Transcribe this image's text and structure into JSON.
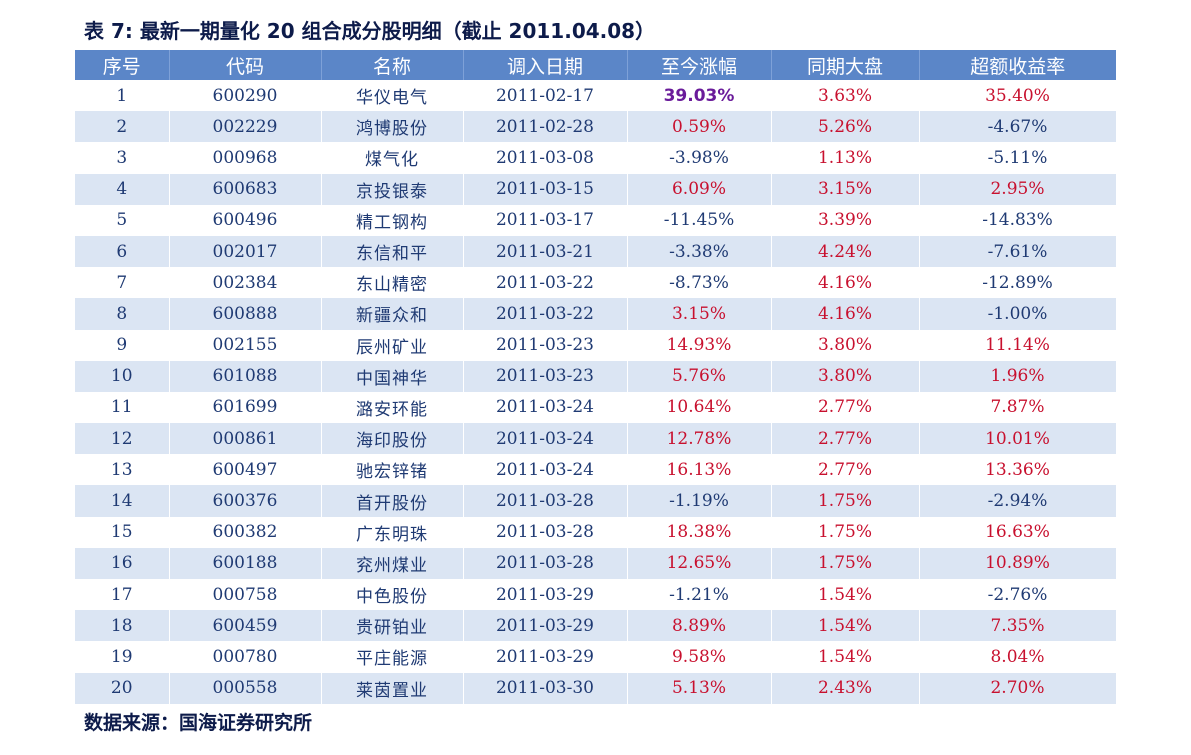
{
  "title": "表 7: 最新一期量化 20 组合成分股明细（截止 2011.04.08）",
  "table": {
    "headers": [
      "序号",
      "代码",
      "名称",
      "调入日期",
      "至今涨幅",
      "同期大盘",
      "超额收益率"
    ],
    "rows": [
      {
        "seq": "1",
        "code": "600290",
        "name": "华仪电气",
        "date": "2011-02-17",
        "gain": "39.03%",
        "market": "3.63%",
        "excess": "35.40%"
      },
      {
        "seq": "2",
        "code": "002229",
        "name": "鸿博股份",
        "date": "2011-02-28",
        "gain": "0.59%",
        "market": "5.26%",
        "excess": "-4.67%"
      },
      {
        "seq": "3",
        "code": "000968",
        "name": "煤气化",
        "date": "2011-03-08",
        "gain": "-3.98%",
        "market": "1.13%",
        "excess": "-5.11%"
      },
      {
        "seq": "4",
        "code": "600683",
        "name": "京投银泰",
        "date": "2011-03-15",
        "gain": "6.09%",
        "market": "3.15%",
        "excess": "2.95%"
      },
      {
        "seq": "5",
        "code": "600496",
        "name": "精工钢构",
        "date": "2011-03-17",
        "gain": "-11.45%",
        "market": "3.39%",
        "excess": "-14.83%"
      },
      {
        "seq": "6",
        "code": "002017",
        "name": "东信和平",
        "date": "2011-03-21",
        "gain": "-3.38%",
        "market": "4.24%",
        "excess": "-7.61%"
      },
      {
        "seq": "7",
        "code": "002384",
        "name": "东山精密",
        "date": "2011-03-22",
        "gain": "-8.73%",
        "market": "4.16%",
        "excess": "-12.89%"
      },
      {
        "seq": "8",
        "code": "600888",
        "name": "新疆众和",
        "date": "2011-03-22",
        "gain": "3.15%",
        "market": "4.16%",
        "excess": "-1.00%"
      },
      {
        "seq": "9",
        "code": "002155",
        "name": "辰州矿业",
        "date": "2011-03-23",
        "gain": "14.93%",
        "market": "3.80%",
        "excess": "11.14%"
      },
      {
        "seq": "10",
        "code": "601088",
        "name": "中国神华",
        "date": "2011-03-23",
        "gain": "5.76%",
        "market": "3.80%",
        "excess": "1.96%"
      },
      {
        "seq": "11",
        "code": "601699",
        "name": "潞安环能",
        "date": "2011-03-24",
        "gain": "10.64%",
        "market": "2.77%",
        "excess": "7.87%"
      },
      {
        "seq": "12",
        "code": "000861",
        "name": "海印股份",
        "date": "2011-03-24",
        "gain": "12.78%",
        "market": "2.77%",
        "excess": "10.01%"
      },
      {
        "seq": "13",
        "code": "600497",
        "name": "驰宏锌锗",
        "date": "2011-03-24",
        "gain": "16.13%",
        "market": "2.77%",
        "excess": "13.36%"
      },
      {
        "seq": "14",
        "code": "600376",
        "name": "首开股份",
        "date": "2011-03-28",
        "gain": "-1.19%",
        "market": "1.75%",
        "excess": "-2.94%"
      },
      {
        "seq": "15",
        "code": "600382",
        "name": "广东明珠",
        "date": "2011-03-28",
        "gain": "18.38%",
        "market": "1.75%",
        "excess": "16.63%"
      },
      {
        "seq": "16",
        "code": "600188",
        "name": "兖州煤业",
        "date": "2011-03-28",
        "gain": "12.65%",
        "market": "1.75%",
        "excess": "10.89%"
      },
      {
        "seq": "17",
        "code": "000758",
        "name": "中色股份",
        "date": "2011-03-29",
        "gain": "-1.21%",
        "market": "1.54%",
        "excess": "-2.76%"
      },
      {
        "seq": "18",
        "code": "600459",
        "name": "贵研铂业",
        "date": "2011-03-29",
        "gain": "8.89%",
        "market": "1.54%",
        "excess": "7.35%"
      },
      {
        "seq": "19",
        "code": "000780",
        "name": "平庄能源",
        "date": "2011-03-29",
        "gain": "9.58%",
        "market": "1.54%",
        "excess": "8.04%"
      },
      {
        "seq": "20",
        "code": "000558",
        "name": "莱茵置业",
        "date": "2011-03-30",
        "gain": "5.13%",
        "market": "2.43%",
        "excess": "2.70%"
      }
    ]
  },
  "source": "数据来源：国海证券研究所",
  "colors": {
    "header_bg": "#5b86c8",
    "stripe_bg": "#dbe5f3",
    "positive": "#c8102e",
    "neutral": "#1f3a73",
    "highlight": "#6a1b9a"
  }
}
